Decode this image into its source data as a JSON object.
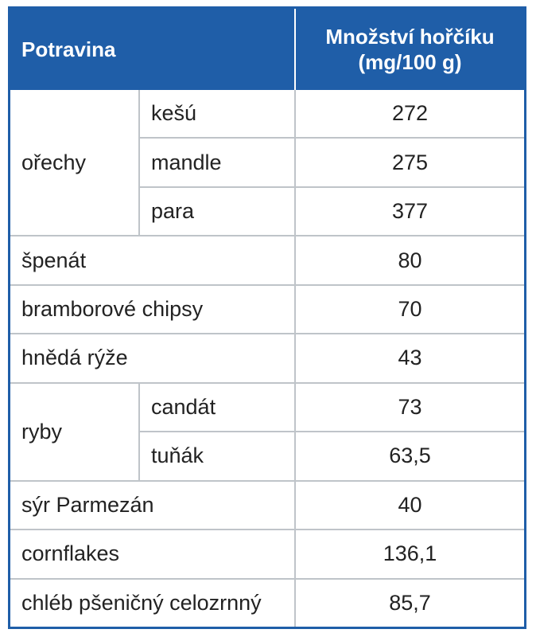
{
  "table": {
    "header": {
      "food": "Potravina",
      "magnesium_line1": "Množství hořčíku",
      "magnesium_line2": "(mg/100 g)"
    },
    "groups": {
      "nuts": {
        "label": "ořechy",
        "items": [
          {
            "name": "kešú",
            "value": "272"
          },
          {
            "name": "mandle",
            "value": "275"
          },
          {
            "name": "para",
            "value": "377"
          }
        ]
      },
      "fish": {
        "label": "ryby",
        "items": [
          {
            "name": "candát",
            "value": "73"
          },
          {
            "name": "tuňák",
            "value": "63,5"
          }
        ]
      }
    },
    "singles": [
      {
        "name": "špenát",
        "value": "80"
      },
      {
        "name": "bramborové chipsy",
        "value": "70"
      },
      {
        "name": "hnědá rýže",
        "value": "43"
      },
      {
        "name": "sýr Parmezán",
        "value": "40"
      },
      {
        "name": "cornflakes",
        "value": "136,1"
      },
      {
        "name": "chléb pšeničný celozrnný",
        "value": "85,7"
      }
    ]
  },
  "colors": {
    "header_bg": "#1f5ea8",
    "header_text": "#ffffff",
    "grid": "#bfc4c9",
    "text": "#222222"
  }
}
